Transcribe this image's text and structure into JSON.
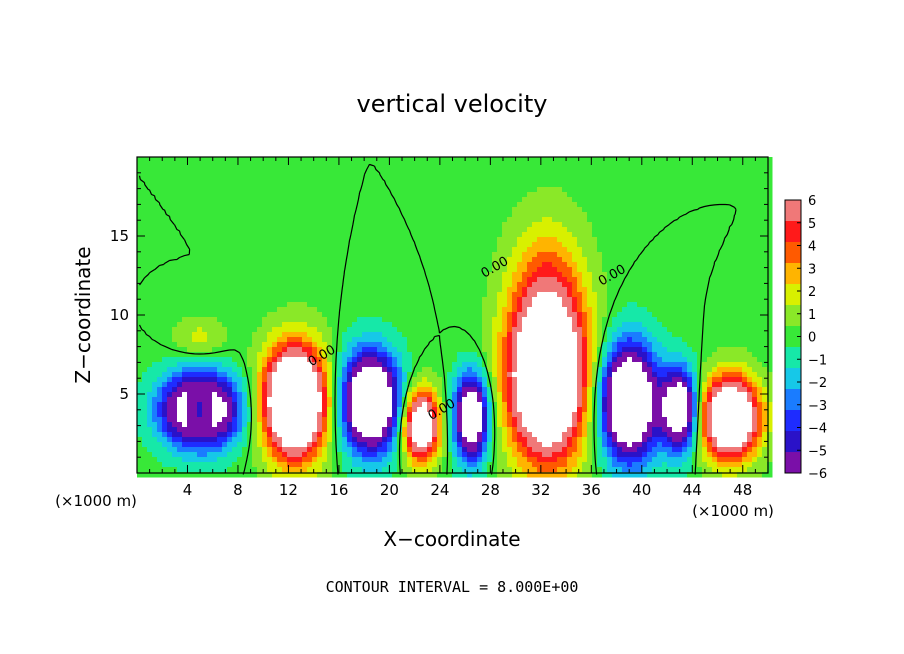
{
  "chart_data": {
    "type": "heatmap",
    "title": "vertical velocity",
    "xlabel": "X−coordinate",
    "ylabel": "Z−coordinate",
    "x_unit_left": "(×1000 m)",
    "x_unit_right": "(×1000 m)",
    "xlim": [
      0,
      50
    ],
    "ylim": [
      0,
      20
    ],
    "x_ticks": [
      4,
      8,
      12,
      16,
      20,
      24,
      28,
      32,
      36,
      40,
      44,
      48
    ],
    "y_ticks": [
      5,
      10,
      15
    ],
    "colorbar": {
      "ticks": [
        "6",
        "5",
        "4",
        "3",
        "2",
        "1",
        "0",
        "−1",
        "−2",
        "−3",
        "−4",
        "−5",
        "−6"
      ],
      "range": [
        -6,
        6
      ]
    },
    "contour_labels": [
      "0.00",
      "0.00",
      "0.00",
      "0.00"
    ],
    "note": "CONTOUR INTERVAL = 8.000E+00",
    "cells": [
      {
        "x": 5,
        "z": 4,
        "sign": -1,
        "amp": 1.8,
        "rx": 3.0,
        "rz": 2.3
      },
      {
        "x": 5,
        "z": 4,
        "sign": 1,
        "amp": 1.0,
        "rx": 1.2,
        "rz": 1.2
      },
      {
        "x": 12.5,
        "z": 4.5,
        "sign": 1,
        "amp": 2.3,
        "rx": 2.4,
        "rz": 3.4
      },
      {
        "x": 18.5,
        "z": 4.5,
        "sign": -1,
        "amp": 2.0,
        "rx": 2.2,
        "rz": 3.0
      },
      {
        "x": 22.5,
        "z": 3,
        "sign": 1,
        "amp": 1.7,
        "rx": 1.4,
        "rz": 2.2
      },
      {
        "x": 26.5,
        "z": 3.5,
        "sign": -1,
        "amp": 1.7,
        "rx": 1.3,
        "rz": 2.6
      },
      {
        "x": 32.5,
        "z": 6,
        "sign": 1,
        "amp": 2.2,
        "rx": 3.0,
        "rz": 5.0
      },
      {
        "x": 32.5,
        "z": 12,
        "sign": 1,
        "amp": 0.45,
        "rx": 3.0,
        "rz": 4.5
      },
      {
        "x": 39,
        "z": 4.5,
        "sign": -1,
        "amp": 2.0,
        "rx": 2.2,
        "rz": 3.5
      },
      {
        "x": 43,
        "z": 4,
        "sign": -1,
        "amp": 1.6,
        "rx": 1.4,
        "rz": 2.5
      },
      {
        "x": 47,
        "z": 3.5,
        "sign": 1,
        "amp": 2.0,
        "rx": 2.2,
        "rz": 2.5
      },
      {
        "x": 5,
        "z": 8.5,
        "sign": 1,
        "amp": 0.3,
        "rx": 2.0,
        "rz": 1.3
      }
    ]
  }
}
